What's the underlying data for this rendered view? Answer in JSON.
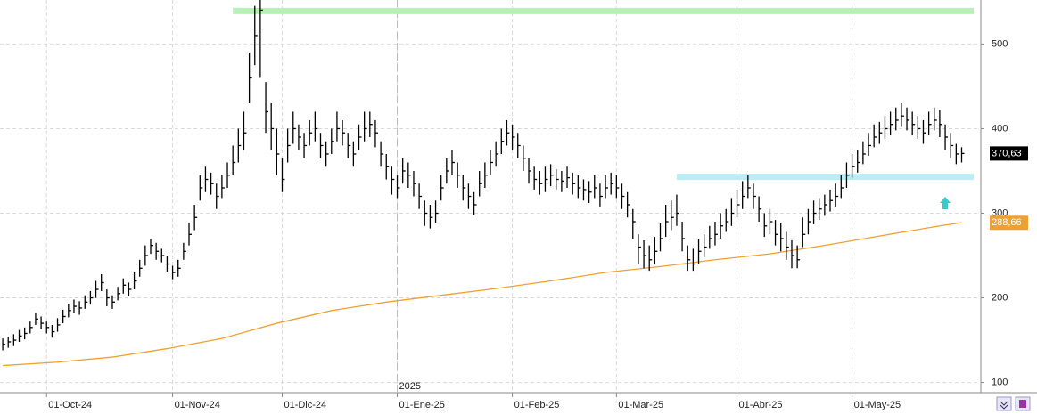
{
  "chart_data": {
    "type": "ohlc",
    "color": "#000000",
    "grid": true,
    "ylim": [
      88,
      552
    ],
    "yticks": [
      100,
      200,
      300,
      400,
      500
    ],
    "xlim": [
      -0.5,
      178.5
    ],
    "xticks": [
      {
        "value": 8,
        "label": "01-Oct-24"
      },
      {
        "value": 31,
        "label": "01-Nov-24"
      },
      {
        "value": 51,
        "label": "01-Dic-24"
      },
      {
        "value": 72,
        "label": "01-Ene-25"
      },
      {
        "value": 93,
        "label": "01-Feb-25"
      },
      {
        "value": 112,
        "label": "01-Mar-25"
      },
      {
        "value": 134,
        "label": "01-Abr-25"
      },
      {
        "value": 155,
        "label": "01-May-25"
      }
    ],
    "year_label": {
      "value": 72,
      "label": "2025"
    },
    "high": [
      152,
      154,
      157,
      162,
      165,
      172,
      182,
      178,
      172,
      168,
      176,
      186,
      193,
      198,
      196,
      203,
      208,
      220,
      228,
      210,
      203,
      213,
      223,
      218,
      230,
      245,
      262,
      270,
      265,
      258,
      250,
      238,
      245,
      265,
      288,
      310,
      345,
      355,
      348,
      335,
      345,
      360,
      380,
      400,
      420,
      490,
      545,
      552,
      455,
      430,
      400,
      365,
      400,
      420,
      405,
      395,
      410,
      420,
      395,
      385,
      400,
      420,
      410,
      395,
      385,
      405,
      420,
      420,
      410,
      385,
      370,
      355,
      345,
      365,
      360,
      350,
      335,
      315,
      310,
      315,
      345,
      365,
      375,
      360,
      345,
      335,
      325,
      350,
      360,
      375,
      385,
      400,
      410,
      405,
      395,
      380,
      365,
      355,
      350,
      355,
      358,
      352,
      350,
      355,
      348,
      345,
      340,
      338,
      345,
      335,
      345,
      348,
      345,
      335,
      325,
      305,
      275,
      268,
      262,
      272,
      288,
      310,
      315,
      322,
      290,
      262,
      258,
      270,
      275,
      285,
      290,
      300,
      305,
      318,
      328,
      338,
      345,
      335,
      320,
      300,
      305,
      292,
      288,
      278,
      268,
      262,
      295,
      305,
      315,
      318,
      322,
      328,
      335,
      345,
      360,
      370,
      375,
      385,
      395,
      405,
      408,
      415,
      420,
      425,
      430,
      425,
      420,
      415,
      410,
      420,
      425,
      422,
      405,
      395,
      382,
      378
    ],
    "low": [
      138,
      141,
      143,
      148,
      151,
      158,
      168,
      163,
      158,
      153,
      160,
      170,
      177,
      182,
      180,
      187,
      192,
      200,
      208,
      190,
      187,
      197,
      205,
      202,
      210,
      225,
      238,
      252,
      245,
      242,
      230,
      222,
      225,
      245,
      262,
      280,
      315,
      325,
      322,
      305,
      318,
      330,
      345,
      360,
      375,
      430,
      475,
      460,
      395,
      375,
      345,
      325,
      360,
      382,
      375,
      365,
      380,
      385,
      365,
      355,
      370,
      385,
      380,
      365,
      355,
      375,
      385,
      390,
      378,
      355,
      340,
      322,
      318,
      335,
      330,
      320,
      305,
      285,
      282,
      288,
      315,
      335,
      345,
      330,
      315,
      305,
      298,
      320,
      330,
      345,
      355,
      370,
      380,
      375,
      365,
      350,
      335,
      328,
      322,
      325,
      332,
      328,
      325,
      330,
      322,
      318,
      315,
      312,
      318,
      308,
      318,
      322,
      318,
      305,
      295,
      270,
      240,
      235,
      232,
      240,
      255,
      272,
      280,
      285,
      255,
      232,
      232,
      240,
      248,
      258,
      262,
      270,
      278,
      285,
      295,
      305,
      318,
      305,
      290,
      272,
      275,
      262,
      255,
      245,
      235,
      235,
      260,
      275,
      287,
      292,
      297,
      302,
      308,
      318,
      330,
      342,
      348,
      358,
      368,
      378,
      382,
      388,
      392,
      398,
      402,
      398,
      392,
      388,
      382,
      392,
      398,
      390,
      375,
      365,
      358,
      360
    ],
    "close": [
      145,
      148,
      150,
      155,
      158,
      165,
      175,
      170,
      165,
      160,
      168,
      178,
      185,
      190,
      188,
      195,
      200,
      210,
      218,
      200,
      195,
      205,
      215,
      210,
      220,
      235,
      250,
      262,
      255,
      250,
      240,
      230,
      235,
      255,
      275,
      295,
      330,
      340,
      335,
      320,
      330,
      345,
      360,
      380,
      395,
      460,
      510,
      540,
      420,
      400,
      370,
      340,
      380,
      400,
      390,
      380,
      395,
      400,
      380,
      370,
      385,
      400,
      395,
      380,
      370,
      390,
      400,
      405,
      395,
      370,
      355,
      340,
      330,
      350,
      345,
      335,
      320,
      300,
      295,
      300,
      330,
      350,
      360,
      345,
      330,
      320,
      310,
      335,
      345,
      360,
      370,
      385,
      395,
      390,
      380,
      365,
      350,
      340,
      335,
      340,
      345,
      340,
      338,
      342,
      335,
      330,
      328,
      325,
      330,
      320,
      330,
      335,
      330,
      320,
      310,
      290,
      260,
      250,
      245,
      255,
      270,
      290,
      295,
      300,
      270,
      245,
      240,
      255,
      260,
      270,
      275,
      285,
      290,
      300,
      310,
      320,
      330,
      320,
      305,
      285,
      290,
      275,
      270,
      260,
      250,
      245,
      275,
      290,
      300,
      305,
      310,
      315,
      320,
      330,
      345,
      355,
      360,
      370,
      380,
      390,
      395,
      400,
      405,
      410,
      415,
      410,
      405,
      400,
      395,
      405,
      410,
      405,
      390,
      380,
      370,
      370.63
    ],
    "moving_average": {
      "color": "#f0a030",
      "x": [
        0,
        10,
        20,
        30,
        40,
        50,
        60,
        70,
        80,
        90,
        100,
        110,
        120,
        130,
        140,
        150,
        160,
        170,
        175
      ],
      "values": [
        120,
        124,
        130,
        140,
        152,
        170,
        185,
        195,
        203,
        211,
        220,
        230,
        237,
        245,
        252,
        262,
        273,
        284,
        289
      ]
    },
    "levels": [
      {
        "value": 539,
        "from": 42,
        "color": "#b8f0b8"
      },
      {
        "value": 343,
        "from": 123,
        "color": "#b8eef4"
      }
    ],
    "last_price": {
      "value": 370.63,
      "label": "370,63",
      "color": "#000000"
    },
    "ma_last": {
      "value": 288.66,
      "label": "288,66",
      "color": "#f0a030"
    }
  }
}
